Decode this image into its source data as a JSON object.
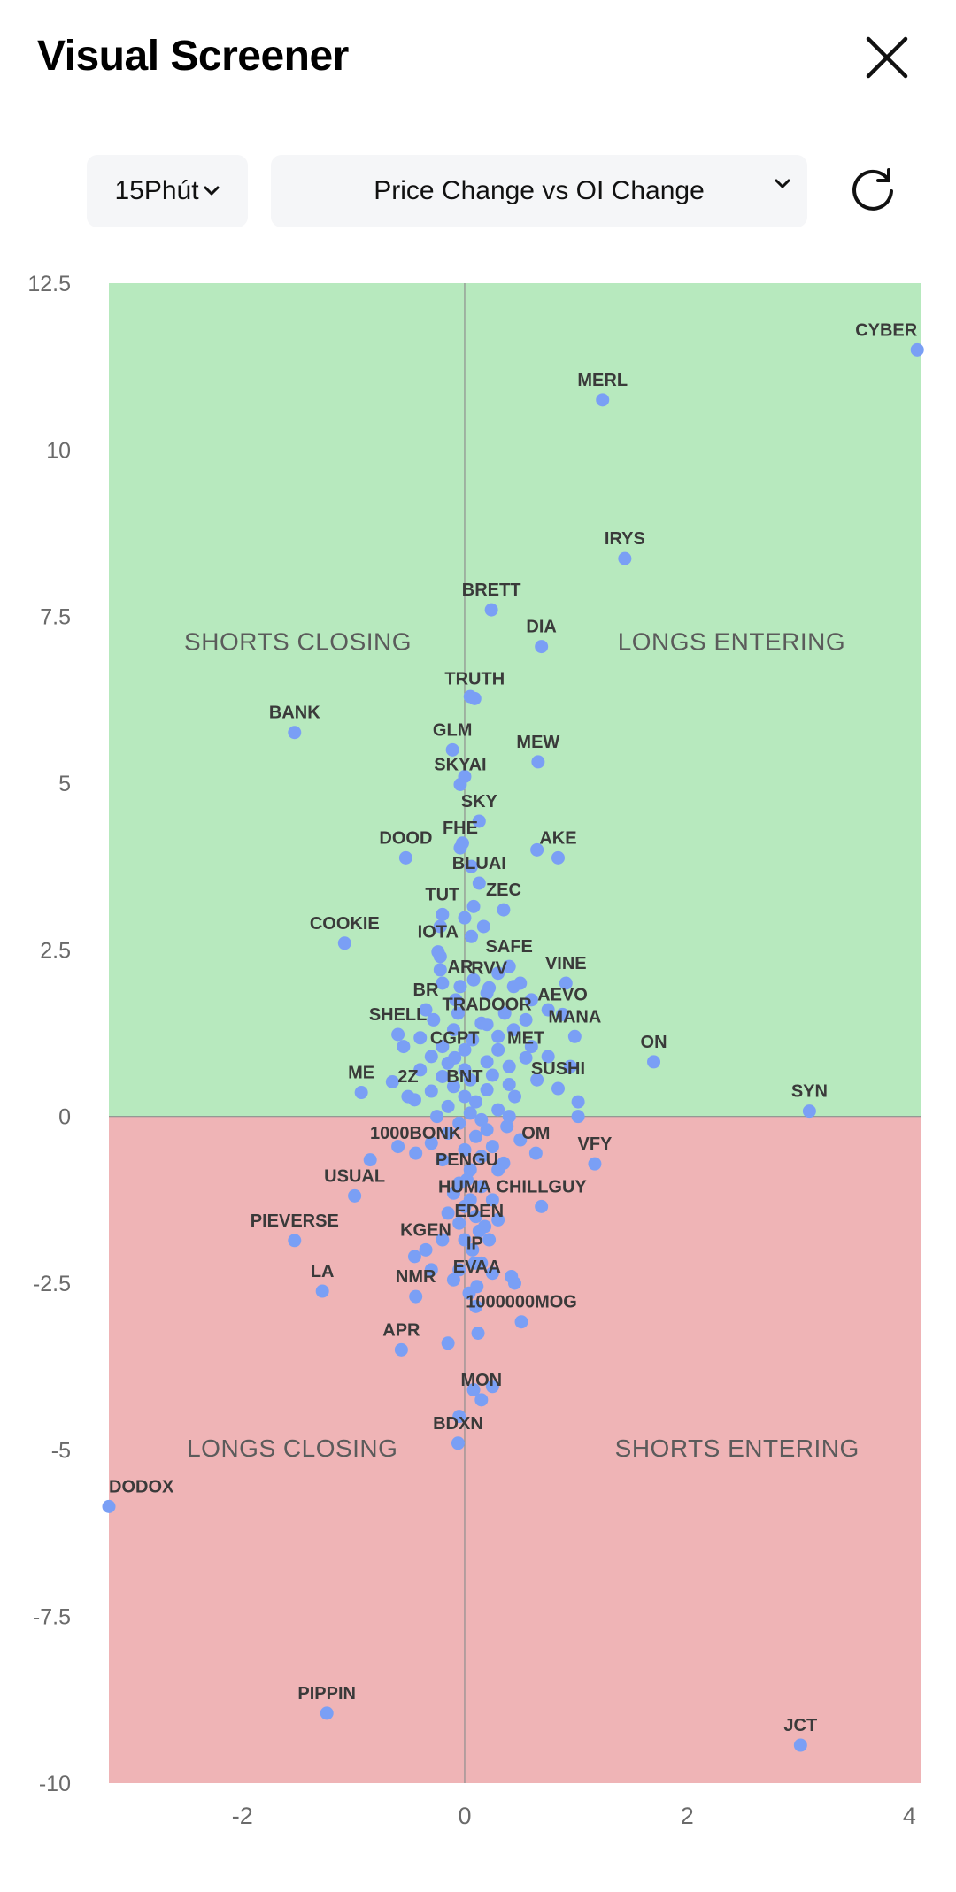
{
  "header": {
    "title": "Visual Screener",
    "close_icon": "close-icon"
  },
  "controls": {
    "timeframe": "15Phút",
    "metric": "Price Change vs OI Change",
    "refresh_icon": "refresh-icon",
    "chevron_icon": "chevron-down-icon"
  },
  "colors": {
    "top_region": "#b7e9be",
    "bottom_region": "#efb4b6",
    "point": "#7a9ff5",
    "label": "#3a3a3a",
    "quadrant_label": "#5b5b5b",
    "axis_line": "#8e8e8e",
    "tick_label": "#6a6a6a"
  },
  "chart_data": {
    "type": "scatter",
    "title": "",
    "xlabel": "",
    "ylabel": "",
    "xlim": [
      -3.2,
      4.1
    ],
    "ylim": [
      -10,
      12.5
    ],
    "xticks": [
      -2,
      0,
      2,
      4
    ],
    "yticks": [
      -10,
      -7.5,
      -5,
      -2.5,
      0,
      2.5,
      5,
      7.5,
      10,
      12.5
    ],
    "grid": false,
    "quadrant_labels": {
      "top_left": "SHORTS CLOSING",
      "top_right": "LONGS ENTERING",
      "bottom_left": "LONGS CLOSING",
      "bottom_right": "SHORTS ENTERING"
    },
    "points": [
      {
        "label": "CYBER",
        "x": 4.07,
        "y": 11.5
      },
      {
        "label": "MERL",
        "x": 1.24,
        "y": 10.75
      },
      {
        "label": "IRYS",
        "x": 1.44,
        "y": 8.37
      },
      {
        "label": "BRETT",
        "x": 0.24,
        "y": 7.6
      },
      {
        "label": "DIA",
        "x": 0.69,
        "y": 7.05
      },
      {
        "label": "TRUTH",
        "x": 0.09,
        "y": 6.27
      },
      {
        "label": "BANK",
        "x": -1.53,
        "y": 5.76
      },
      {
        "label": "GLM",
        "x": -0.11,
        "y": 5.5
      },
      {
        "label": "MEW",
        "x": 0.66,
        "y": 5.32
      },
      {
        "label": "SKYAI",
        "x": -0.04,
        "y": 4.98
      },
      {
        "label": "SKY",
        "x": 0.13,
        "y": 4.43
      },
      {
        "label": "FHE",
        "x": -0.04,
        "y": 4.03
      },
      {
        "label": "AKE",
        "x": 0.84,
        "y": 3.88
      },
      {
        "label": "DOOD",
        "x": -0.53,
        "y": 3.88
      },
      {
        "label": "BLUAI",
        "x": 0.13,
        "y": 3.5
      },
      {
        "label": "TUT",
        "x": -0.2,
        "y": 3.03
      },
      {
        "label": "ZEC",
        "x": 0.35,
        "y": 3.1
      },
      {
        "label": "COOKIE",
        "x": -1.08,
        "y": 2.6
      },
      {
        "label": "IOTA",
        "x": -0.24,
        "y": 2.47
      },
      {
        "label": "SAFE",
        "x": 0.4,
        "y": 2.25
      },
      {
        "label": "VINE",
        "x": 0.91,
        "y": 2.0
      },
      {
        "label": "AR",
        "x": -0.04,
        "y": 1.95
      },
      {
        "label": "RVV",
        "x": 0.22,
        "y": 1.93
      },
      {
        "label": "BR",
        "x": -0.35,
        "y": 1.6
      },
      {
        "label": "AEVO",
        "x": 0.88,
        "y": 1.53
      },
      {
        "label": "TRADOOR",
        "x": 0.2,
        "y": 1.38
      },
      {
        "label": "SHELL",
        "x": -0.6,
        "y": 1.23
      },
      {
        "label": "MANA",
        "x": 0.99,
        "y": 1.2
      },
      {
        "label": "ON",
        "x": 1.7,
        "y": 0.82
      },
      {
        "label": "CGPT",
        "x": -0.09,
        "y": 0.88
      },
      {
        "label": "MET",
        "x": 0.55,
        "y": 0.88
      },
      {
        "label": "ME",
        "x": -0.93,
        "y": 0.36
      },
      {
        "label": "SUSHI",
        "x": 0.84,
        "y": 0.42
      },
      {
        "label": "SYN",
        "x": 3.1,
        "y": 0.08
      },
      {
        "label": "2Z",
        "x": -0.51,
        "y": 0.3
      },
      {
        "label": "BNT",
        "x": 0.0,
        "y": 0.3
      },
      {
        "label": "OM",
        "x": 0.64,
        "y": -0.55
      },
      {
        "label": "1000BONK",
        "x": -0.44,
        "y": -0.55
      },
      {
        "label": "VFY",
        "x": 1.17,
        "y": -0.71
      },
      {
        "label": "PENGU",
        "x": 0.02,
        "y": -0.95
      },
      {
        "label": "USUAL",
        "x": -0.99,
        "y": -1.19
      },
      {
        "label": "HUMA",
        "x": 0.0,
        "y": -1.35
      },
      {
        "label": "CHILLGUY",
        "x": 0.69,
        "y": -1.35
      },
      {
        "label": "EDEN",
        "x": 0.13,
        "y": -1.72
      },
      {
        "label": "PIEVERSE",
        "x": -1.53,
        "y": -1.86
      },
      {
        "label": "KGEN",
        "x": -0.35,
        "y": -2.0
      },
      {
        "label": "IP",
        "x": 0.09,
        "y": -2.2
      },
      {
        "label": "EVAA",
        "x": 0.11,
        "y": -2.55
      },
      {
        "label": "LA",
        "x": -1.28,
        "y": -2.62
      },
      {
        "label": "NMR",
        "x": -0.44,
        "y": -2.7
      },
      {
        "label": "1000000MOG",
        "x": 0.51,
        "y": -3.08
      },
      {
        "label": "APR",
        "x": -0.57,
        "y": -3.5
      },
      {
        "label": "MON",
        "x": 0.15,
        "y": -4.25
      },
      {
        "label": "BDXN",
        "x": -0.06,
        "y": -4.9
      },
      {
        "label": "DODOX",
        "x": -3.2,
        "y": -5.85
      },
      {
        "label": "PIPPIN",
        "x": -1.24,
        "y": -8.95
      },
      {
        "label": "JCT",
        "x": 3.02,
        "y": -9.43
      }
    ],
    "unlabeled_points": [
      [
        0.05,
        6.3
      ],
      [
        0.0,
        5.1
      ],
      [
        -0.02,
        4.1
      ],
      [
        0.06,
        3.75
      ],
      [
        0.65,
        4.0
      ],
      [
        0.08,
        3.15
      ],
      [
        -0.22,
        2.85
      ],
      [
        0.0,
        2.98
      ],
      [
        0.17,
        2.85
      ],
      [
        0.06,
        2.7
      ],
      [
        -0.22,
        2.4
      ],
      [
        -0.22,
        2.2
      ],
      [
        0.3,
        2.15
      ],
      [
        0.5,
        2.0
      ],
      [
        0.08,
        2.05
      ],
      [
        -0.2,
        2.0
      ],
      [
        0.44,
        1.95
      ],
      [
        0.2,
        1.85
      ],
      [
        0.6,
        1.75
      ],
      [
        -0.08,
        1.75
      ],
      [
        0.75,
        1.6
      ],
      [
        0.36,
        1.55
      ],
      [
        -0.06,
        1.55
      ],
      [
        0.55,
        1.45
      ],
      [
        -0.28,
        1.45
      ],
      [
        0.15,
        1.4
      ],
      [
        0.44,
        1.3
      ],
      [
        -0.1,
        1.3
      ],
      [
        0.3,
        1.2
      ],
      [
        -0.4,
        1.18
      ],
      [
        0.07,
        1.15
      ],
      [
        0.6,
        1.05
      ],
      [
        -0.2,
        1.05
      ],
      [
        -0.55,
        1.05
      ],
      [
        0.3,
        1.0
      ],
      [
        0.0,
        1.0
      ],
      [
        0.75,
        0.9
      ],
      [
        -0.3,
        0.9
      ],
      [
        0.2,
        0.82
      ],
      [
        -0.15,
        0.8
      ],
      [
        0.4,
        0.75
      ],
      [
        0.95,
        0.75
      ],
      [
        0.0,
        0.7
      ],
      [
        -0.4,
        0.7
      ],
      [
        0.25,
        0.62
      ],
      [
        -0.2,
        0.6
      ],
      [
        0.65,
        0.55
      ],
      [
        0.05,
        0.55
      ],
      [
        -0.65,
        0.52
      ],
      [
        0.4,
        0.48
      ],
      [
        -0.1,
        0.45
      ],
      [
        0.2,
        0.4
      ],
      [
        -0.3,
        0.38
      ],
      [
        0.45,
        0.3
      ],
      [
        -0.45,
        0.25
      ],
      [
        0.1,
        0.22
      ],
      [
        1.02,
        0.22
      ],
      [
        -0.15,
        0.15
      ],
      [
        0.3,
        0.1
      ],
      [
        0.05,
        0.05
      ],
      [
        -0.25,
        0.0
      ],
      [
        0.4,
        0.0
      ],
      [
        0.15,
        -0.05
      ],
      [
        1.02,
        0.0
      ],
      [
        -0.05,
        -0.1
      ],
      [
        0.38,
        -0.15
      ],
      [
        0.2,
        -0.2
      ],
      [
        -0.15,
        -0.25
      ],
      [
        0.1,
        -0.3
      ],
      [
        0.5,
        -0.35
      ],
      [
        -0.3,
        -0.4
      ],
      [
        0.25,
        -0.45
      ],
      [
        0.0,
        -0.5
      ],
      [
        -0.6,
        -0.45
      ],
      [
        0.15,
        -0.6
      ],
      [
        -0.2,
        -0.65
      ],
      [
        0.35,
        -0.7
      ],
      [
        0.05,
        -0.8
      ],
      [
        -0.85,
        -0.65
      ],
      [
        -0.05,
        -1.0
      ],
      [
        0.15,
        -1.05
      ],
      [
        0.3,
        -0.8
      ],
      [
        -0.1,
        -1.15
      ],
      [
        0.05,
        -1.25
      ],
      [
        0.25,
        -1.25
      ],
      [
        -0.15,
        -1.45
      ],
      [
        0.1,
        -1.5
      ],
      [
        0.3,
        -1.55
      ],
      [
        -0.05,
        -1.6
      ],
      [
        0.18,
        -1.65
      ],
      [
        0.0,
        -1.85
      ],
      [
        0.22,
        -1.85
      ],
      [
        -0.2,
        -1.85
      ],
      [
        0.07,
        -2.0
      ],
      [
        -0.45,
        -2.1
      ],
      [
        0.15,
        -2.2
      ],
      [
        -0.05,
        -2.3
      ],
      [
        0.25,
        -2.35
      ],
      [
        -0.3,
        -2.3
      ],
      [
        0.42,
        -2.4
      ],
      [
        -0.1,
        -2.45
      ],
      [
        0.45,
        -2.5
      ],
      [
        0.04,
        -2.65
      ],
      [
        0.1,
        -2.85
      ],
      [
        0.12,
        -3.25
      ],
      [
        -0.15,
        -3.4
      ],
      [
        0.08,
        -4.1
      ],
      [
        0.25,
        -4.05
      ],
      [
        -0.05,
        -4.5
      ]
    ]
  }
}
